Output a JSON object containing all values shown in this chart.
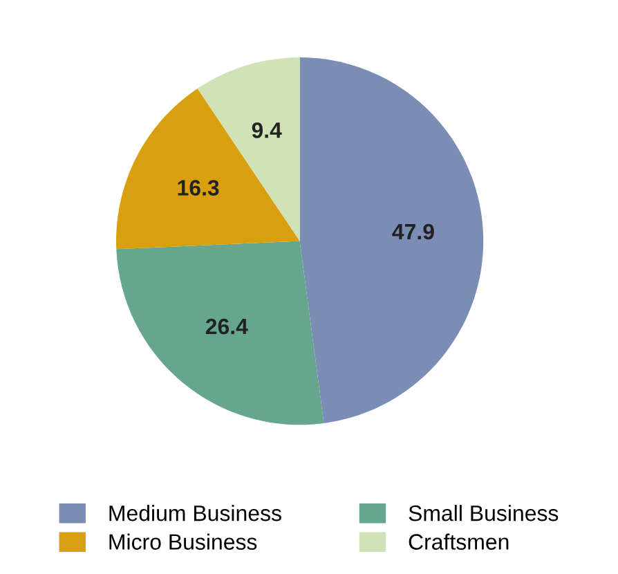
{
  "chart_data": {
    "type": "pie",
    "categories": [
      "Medium Business",
      "Micro Business",
      "Small Business",
      "Craftsmen"
    ],
    "values": [
      47.9,
      16.3,
      26.4,
      9.4
    ],
    "colors": [
      "#7b8db4",
      "#d8a010",
      "#66a68f",
      "#d1e2b7"
    ],
    "data_labels": true,
    "legend": "bottom"
  }
}
